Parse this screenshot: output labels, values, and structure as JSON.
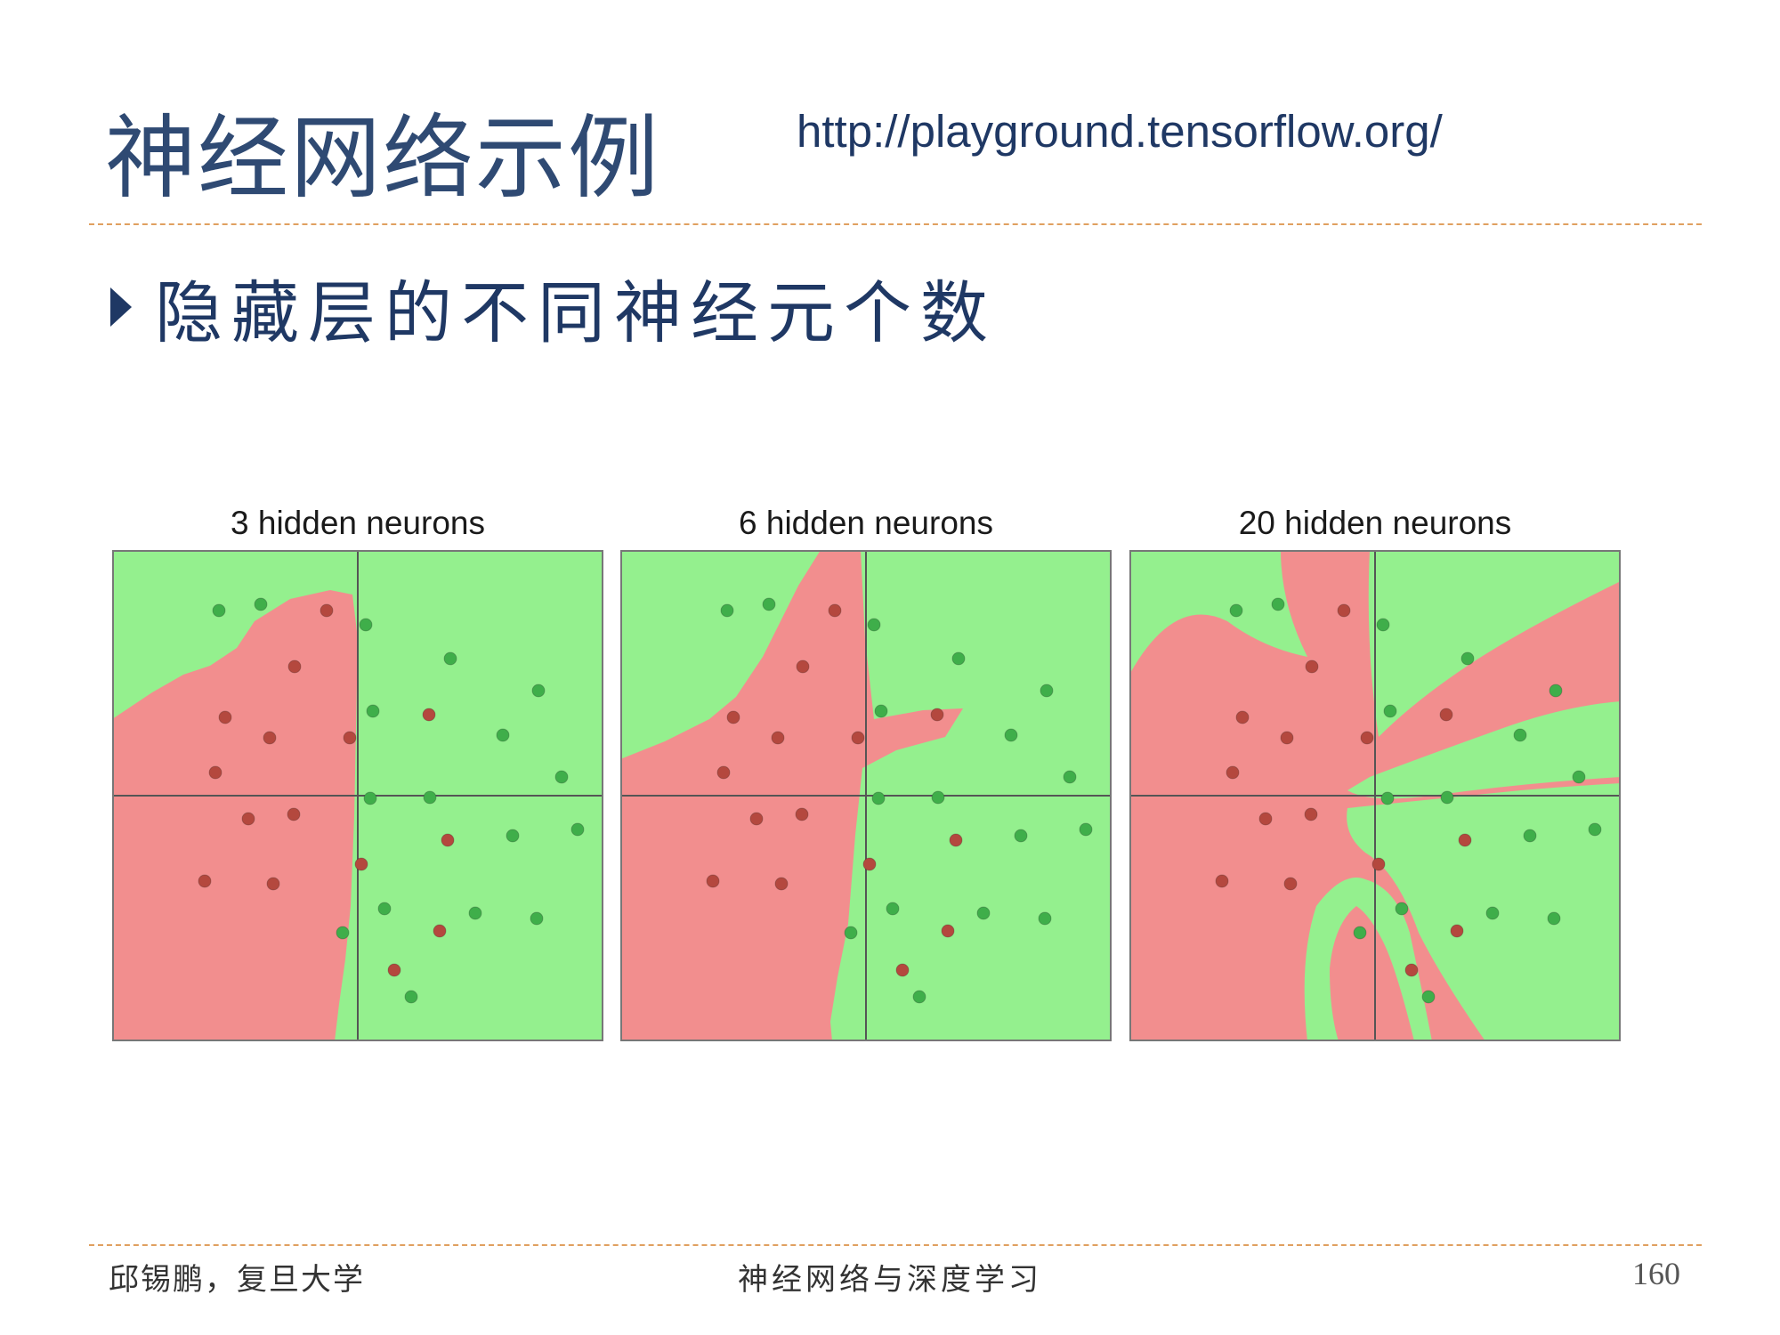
{
  "slide": {
    "title": "神经网络示例",
    "url": "http://playground.tensorflow.org/",
    "bullet": "隐藏层的不同神经元个数"
  },
  "colors": {
    "title": "#2f4a73",
    "accent_rule": "#e0a060",
    "region_green": "#94f08e",
    "region_red": "#f28e8e",
    "dot_green": "#3fae4a",
    "dot_red": "#b4483e"
  },
  "panels": [
    {
      "title": "3 hidden neurons"
    },
    {
      "title": "6 hidden neurons"
    },
    {
      "title": "20 hidden neurons"
    }
  ],
  "footer": {
    "left": "邱锡鹏，复旦大学",
    "center": "神经网络与深度学习",
    "page": "160"
  }
}
